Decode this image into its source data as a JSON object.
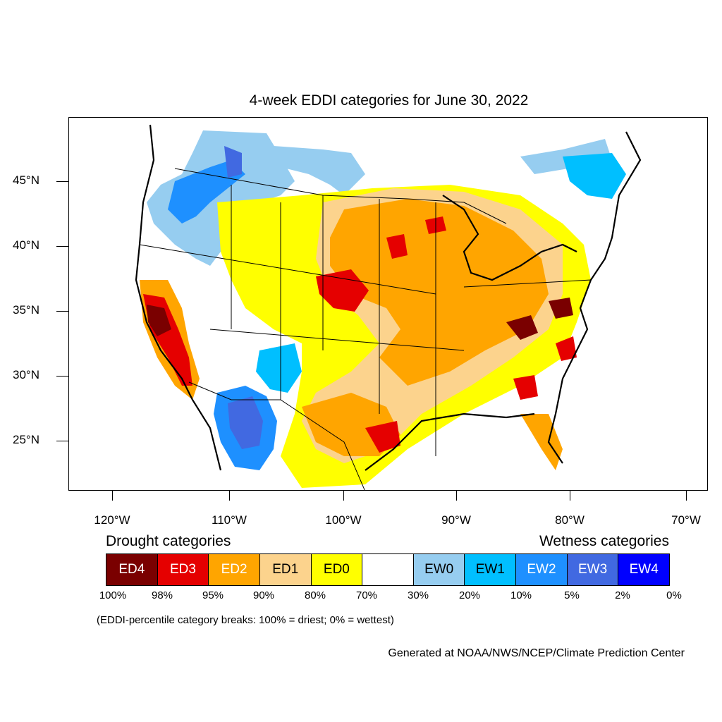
{
  "title": "4-week EDDI categories for June 30, 2022",
  "lat_labels": [
    "45°N",
    "40°N",
    "35°N",
    "30°N",
    "25°N"
  ],
  "lon_labels": [
    "120°W",
    "110°W",
    "100°W",
    "90°W",
    "80°W",
    "70°W"
  ],
  "legend": {
    "drought_header": "Drought categories",
    "wetness_header": "Wetness categories",
    "categories": [
      {
        "label": "ED4",
        "color": "#7a0000",
        "text_color": "#ffffff"
      },
      {
        "label": "ED3",
        "color": "#e50000",
        "text_color": "#ffffff"
      },
      {
        "label": "ED2",
        "color": "#ffa500",
        "text_color": "#ffffff"
      },
      {
        "label": "ED1",
        "color": "#fcd38d",
        "text_color": "#000000"
      },
      {
        "label": "ED0",
        "color": "#ffff00",
        "text_color": "#000000"
      },
      {
        "label": "",
        "color": "#ffffff",
        "text_color": "#000000"
      },
      {
        "label": "EW0",
        "color": "#96cdf0",
        "text_color": "#000000"
      },
      {
        "label": "EW1",
        "color": "#00bfff",
        "text_color": "#000000"
      },
      {
        "label": "EW2",
        "color": "#1e90ff",
        "text_color": "#ffffff"
      },
      {
        "label": "EW3",
        "color": "#4169e1",
        "text_color": "#ffffff"
      },
      {
        "label": "EW4",
        "color": "#0000ff",
        "text_color": "#ffffff"
      }
    ],
    "percentiles": [
      "100%",
      "98%",
      "95%",
      "90%",
      "80%",
      "70%",
      "30%",
      "20%",
      "10%",
      "5%",
      "2%",
      "0%"
    ]
  },
  "breaks_note": "(EDDI-percentile category breaks: 100% = driest; 0% = wettest)",
  "credit": "Generated at NOAA/NWS/NCEP/Climate Prediction Center"
}
